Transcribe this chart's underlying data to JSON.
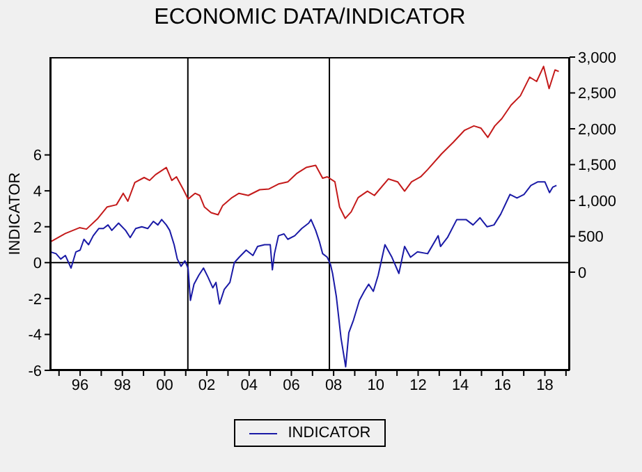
{
  "chart_data": {
    "type": "line",
    "title": "ECONOMIC DATA/INDICATOR",
    "ylabel": "INDICATOR",
    "xlim": [
      1994.58,
      2019.17
    ],
    "xticks": [
      {
        "value": 1995,
        "label": null
      },
      {
        "value": 1996,
        "label": "96"
      },
      {
        "value": 1997,
        "label": null
      },
      {
        "value": 1998,
        "label": "98"
      },
      {
        "value": 1999,
        "label": null
      },
      {
        "value": 2000,
        "label": "00"
      },
      {
        "value": 2001,
        "label": null
      },
      {
        "value": 2002,
        "label": "02"
      },
      {
        "value": 2003,
        "label": null
      },
      {
        "value": 2004,
        "label": "04"
      },
      {
        "value": 2005,
        "label": null
      },
      {
        "value": 2006,
        "label": "06"
      },
      {
        "value": 2007,
        "label": null
      },
      {
        "value": 2008,
        "label": "08"
      },
      {
        "value": 2009,
        "label": null
      },
      {
        "value": 2010,
        "label": "10"
      },
      {
        "value": 2011,
        "label": null
      },
      {
        "value": 2012,
        "label": "12"
      },
      {
        "value": 2013,
        "label": null
      },
      {
        "value": 2014,
        "label": "14"
      },
      {
        "value": 2015,
        "label": null
      },
      {
        "value": 2016,
        "label": "16"
      },
      {
        "value": 2017,
        "label": null
      },
      {
        "value": 2018,
        "label": "18"
      },
      {
        "value": 2019,
        "label": null
      }
    ],
    "ylim": [
      -6,
      11.45
    ],
    "yticks": [
      -6,
      -4,
      -2,
      0,
      2,
      4,
      6
    ],
    "y2lim": [
      -1370,
      3000
    ],
    "y2ticks": [
      0,
      500,
      {
        "value": 1000,
        "label": "1,000"
      },
      {
        "value": 1500,
        "label": "1,500"
      },
      {
        "value": 2000,
        "label": "2,000"
      },
      {
        "value": 2500,
        "label": "2,500"
      },
      {
        "value": 3000,
        "label": "3,000"
      }
    ],
    "legend": "bottom",
    "marker": "none",
    "line_style": "solid",
    "ref_lines": [
      {
        "axis": "x",
        "value": 2001.1,
        "color": "#000000"
      },
      {
        "axis": "x",
        "value": 2007.8,
        "color": "#000000"
      },
      {
        "axis": "y",
        "value": 0,
        "color": "#000000"
      }
    ],
    "series": [
      {
        "name": "INDICATOR",
        "color": "#1a1aa6",
        "x": [
          1994.58,
          1994.86,
          1995.08,
          1995.3,
          1995.57,
          1995.8,
          1996.0,
          1996.18,
          1996.4,
          1996.62,
          1996.88,
          1997.1,
          1997.32,
          1997.5,
          1997.82,
          1998.15,
          1998.37,
          1998.63,
          1998.92,
          1999.2,
          1999.47,
          1999.68,
          1999.86,
          2000.08,
          2000.24,
          2000.45,
          2000.6,
          2000.78,
          2000.96,
          2001.11,
          2001.22,
          2001.39,
          2001.62,
          2001.84,
          2002.05,
          2002.28,
          2002.43,
          2002.6,
          2002.82,
          2003.09,
          2003.3,
          2003.53,
          2003.86,
          2004.18,
          2004.4,
          2004.73,
          2005.0,
          2005.1,
          2005.2,
          2005.39,
          2005.65,
          2005.83,
          2006.16,
          2006.49,
          2006.82,
          2006.93,
          2007.15,
          2007.32,
          2007.48,
          2007.7,
          2007.85,
          2007.95,
          2008.13,
          2008.35,
          2008.57,
          2008.72,
          2008.94,
          2009.22,
          2009.45,
          2009.66,
          2009.88,
          2010.11,
          2010.43,
          2010.76,
          2011.09,
          2011.36,
          2011.64,
          2011.97,
          2012.45,
          2012.95,
          2013.06,
          2013.39,
          2013.83,
          2014.27,
          2014.6,
          2014.93,
          2015.26,
          2015.59,
          2015.91,
          2016.35,
          2016.68,
          2017.01,
          2017.34,
          2017.67,
          2018.0,
          2018.22,
          2018.37,
          2018.55
        ],
        "values": [
          0.6,
          0.5,
          0.2,
          0.4,
          -0.3,
          0.6,
          0.7,
          1.3,
          1.0,
          1.5,
          1.9,
          1.9,
          2.1,
          1.8,
          2.2,
          1.8,
          1.4,
          1.9,
          2.0,
          1.9,
          2.3,
          2.1,
          2.4,
          2.1,
          1.8,
          1.0,
          0.2,
          -0.2,
          0.1,
          -0.3,
          -2.1,
          -1.2,
          -0.7,
          -0.3,
          -0.8,
          -1.4,
          -1.1,
          -2.3,
          -1.5,
          -1.1,
          0.0,
          0.3,
          0.7,
          0.4,
          0.9,
          1.0,
          1.0,
          -0.4,
          0.5,
          1.5,
          1.6,
          1.3,
          1.5,
          1.9,
          2.2,
          2.4,
          1.8,
          1.2,
          0.5,
          0.3,
          -0.1,
          -0.6,
          -1.9,
          -4.2,
          -5.8,
          -3.9,
          -3.2,
          -2.1,
          -1.6,
          -1.2,
          -1.6,
          -0.7,
          1.0,
          0.3,
          -0.6,
          0.9,
          0.3,
          0.6,
          0.5,
          1.5,
          0.9,
          1.4,
          2.4,
          2.4,
          2.1,
          2.5,
          2.0,
          2.1,
          2.7,
          3.8,
          3.6,
          3.8,
          4.3,
          4.5,
          4.5,
          3.9,
          4.2,
          4.3
        ]
      },
      {
        "color": "#c41a1a",
        "axis": "y2",
        "x": [
          1994.58,
          1995.3,
          1995.97,
          1996.3,
          1996.84,
          1997.28,
          1997.72,
          1998.04,
          1998.26,
          1998.59,
          1999.03,
          1999.29,
          1999.57,
          2000.08,
          2000.34,
          2000.56,
          2000.89,
          2001.11,
          2001.44,
          2001.66,
          2001.88,
          2002.2,
          2002.53,
          2002.75,
          2003.19,
          2003.52,
          2003.96,
          2004.5,
          2004.94,
          2005.39,
          2005.83,
          2006.27,
          2006.7,
          2007.15,
          2007.48,
          2007.7,
          2008.06,
          2008.28,
          2008.55,
          2008.83,
          2009.16,
          2009.6,
          2009.93,
          2010.59,
          2011.03,
          2011.36,
          2011.69,
          2012.12,
          2012.45,
          2013.11,
          2013.66,
          2014.2,
          2014.64,
          2014.97,
          2015.3,
          2015.63,
          2015.96,
          2016.4,
          2016.84,
          2017.28,
          2017.61,
          2017.94,
          2018.2,
          2018.48,
          2018.66
        ],
        "values": [
          420,
          540,
          620,
          600,
          750,
          910,
          940,
          1100,
          990,
          1250,
          1320,
          1280,
          1360,
          1460,
          1280,
          1330,
          1150,
          1020,
          1100,
          1070,
          910,
          830,
          800,
          930,
          1040,
          1100,
          1070,
          1150,
          1160,
          1230,
          1260,
          1380,
          1460,
          1490,
          1310,
          1330,
          1260,
          910,
          750,
          840,
          1040,
          1130,
          1070,
          1300,
          1260,
          1130,
          1260,
          1330,
          1430,
          1650,
          1810,
          1980,
          2040,
          2010,
          1880,
          2040,
          2140,
          2330,
          2460,
          2720,
          2660,
          2870,
          2560,
          2820,
          2800
        ]
      }
    ]
  }
}
